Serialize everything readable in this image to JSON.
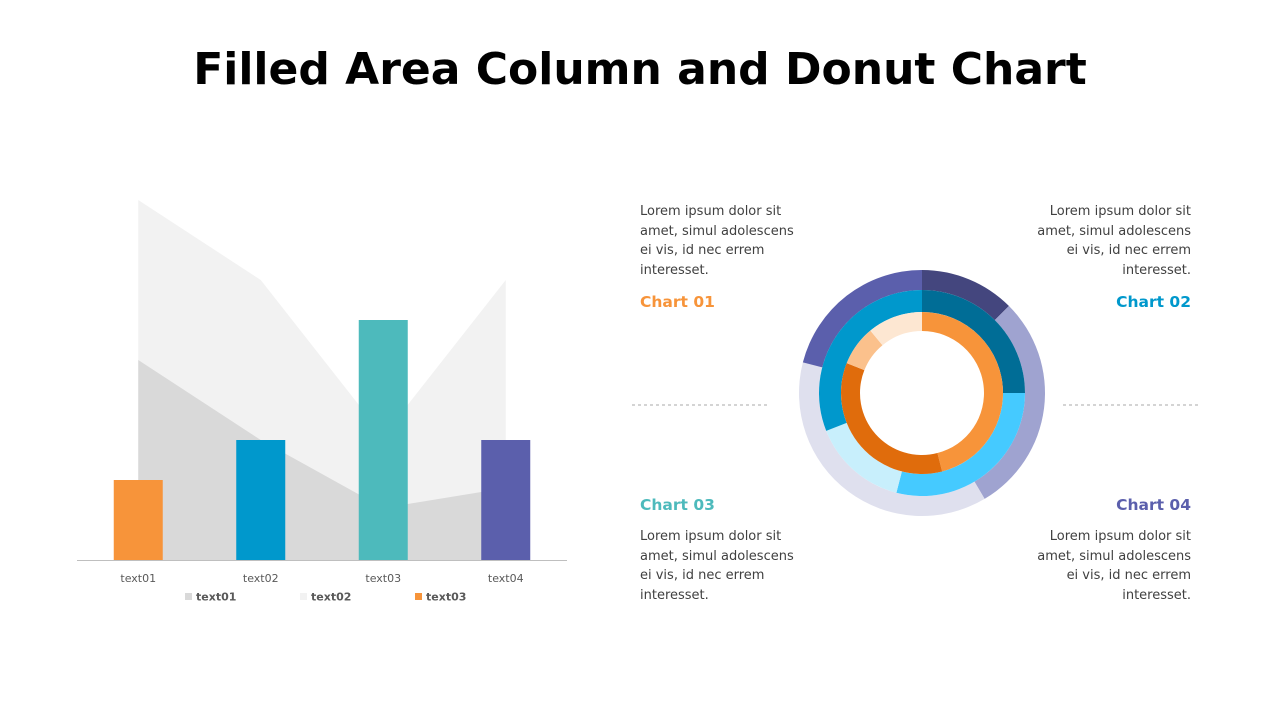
{
  "title": "Filled Area Column and Donut Chart",
  "chart_data": [
    {
      "type": "area-column",
      "categories": [
        "text01",
        "text02",
        "text03",
        "text04"
      ],
      "ylim": [
        0,
        100
      ],
      "series": [
        {
          "name": "text01",
          "type": "area",
          "color": "#d9d9d9",
          "values": [
            50,
            30,
            13,
            18
          ]
        },
        {
          "name": "text02",
          "type": "area",
          "color": "#f2f2f2",
          "values": [
            90,
            70,
            31,
            70
          ]
        },
        {
          "name": "text03",
          "type": "bar",
          "color": "#f7943a",
          "colors": [
            "#f7943a",
            "#0098cc",
            "#4dbabc",
            "#5b5fac"
          ],
          "values": [
            20,
            30,
            60,
            30
          ]
        }
      ]
    },
    {
      "type": "donut",
      "rings": [
        {
          "colors": [
            "#44467e",
            "#9fa3d0",
            "#dfe0ee",
            "#5b5fac"
          ],
          "values": [
            12.5,
            29,
            37.5,
            21
          ]
        },
        {
          "colors": [
            "#006d96",
            "#45caff",
            "#c8effc",
            "#0098cc"
          ],
          "values": [
            25,
            29,
            15,
            31
          ]
        },
        {
          "colors": [
            "#f7943a",
            "#e06c0c",
            "#fbc18c",
            "#fde7d2"
          ],
          "values": [
            46,
            35,
            8,
            11
          ]
        }
      ]
    }
  ],
  "panels": [
    {
      "title": "Chart 01",
      "color": "#f7943a",
      "text": "Lorem ipsum dolor sit amet, simul adolescens ei vis, id nec errem interesset."
    },
    {
      "title": "Chart 02",
      "color": "#0098cc",
      "text": "Lorem ipsum dolor sit amet, simul adolescens ei vis, id nec errem interesset."
    },
    {
      "title": "Chart 03",
      "color": "#4dbabc",
      "text": "Lorem ipsum dolor sit amet, simul adolescens ei vis, id nec errem interesset."
    },
    {
      "title": "Chart 04",
      "color": "#5b5fac",
      "text": "Lorem ipsum dolor sit amet, simul adolescens ei vis, id nec errem interesset."
    }
  ]
}
